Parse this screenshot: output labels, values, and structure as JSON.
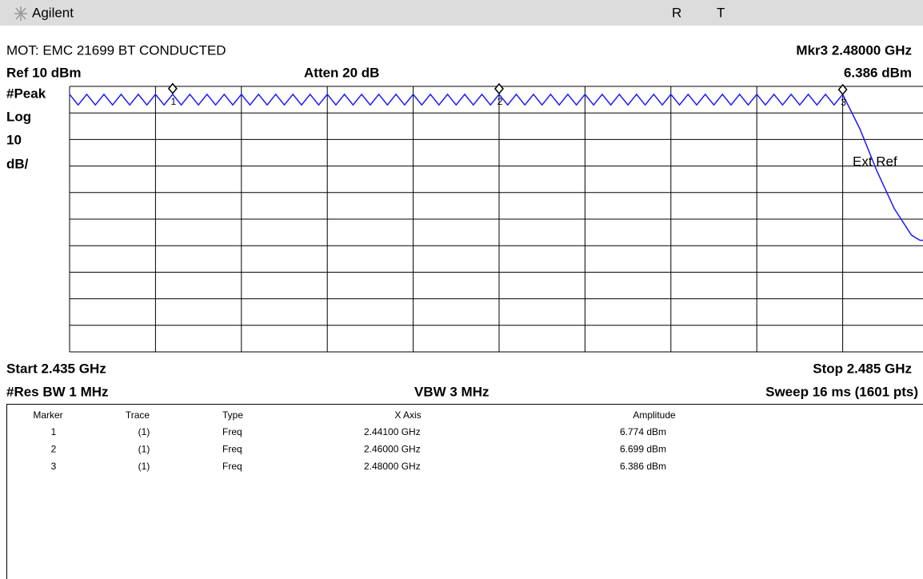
{
  "header": {
    "brand": "Agilent",
    "status": [
      "R",
      "T"
    ]
  },
  "info": {
    "title": "MOT: EMC 21699 BT CONDUCTED",
    "marker_readout": "Mkr3 2.48000 GHz",
    "ref_level": "Ref 10 dBm",
    "attenuation": "Atten 20 dB",
    "marker_amplitude": "6.386 dBm",
    "side_labels": [
      "#Peak",
      "Log",
      "10",
      "dB/"
    ],
    "annotation": "Ext Ref",
    "start": "Start 2.435 GHz",
    "stop": "Stop 2.485 GHz",
    "rbw": "#Res BW 1 MHz",
    "vbw": "VBW 3 MHz",
    "sweep": "Sweep 16 ms (1601 pts)"
  },
  "chart_data": {
    "type": "line",
    "x": [
      2.435,
      2.4355,
      2.436,
      2.4365,
      2.437,
      2.4375,
      2.438,
      2.4385,
      2.439,
      2.4395,
      2.44,
      2.4405,
      2.441,
      2.4415,
      2.442,
      2.4425,
      2.443,
      2.4435,
      2.444,
      2.4445,
      2.445,
      2.4455,
      2.446,
      2.4465,
      2.447,
      2.4475,
      2.448,
      2.4485,
      2.449,
      2.4495,
      2.45,
      2.4505,
      2.451,
      2.4515,
      2.452,
      2.4525,
      2.453,
      2.4535,
      2.454,
      2.4545,
      2.455,
      2.4555,
      2.456,
      2.4565,
      2.457,
      2.4575,
      2.458,
      2.4585,
      2.459,
      2.4595,
      2.46,
      2.4605,
      2.461,
      2.4615,
      2.462,
      2.4625,
      2.463,
      2.4635,
      2.464,
      2.4645,
      2.465,
      2.4655,
      2.466,
      2.4665,
      2.467,
      2.4675,
      2.468,
      2.4685,
      2.469,
      2.4695,
      2.47,
      2.4705,
      2.471,
      2.4715,
      2.472,
      2.4725,
      2.473,
      2.4735,
      2.474,
      2.4745,
      2.475,
      2.4755,
      2.476,
      2.4765,
      2.477,
      2.4775,
      2.478,
      2.4785,
      2.479,
      2.4795,
      2.48,
      2.481,
      2.482,
      2.483,
      2.484,
      2.4845,
      2.485
    ],
    "series": [
      {
        "color": "#1a1aff",
        "values": [
          7,
          3,
          7,
          3,
          7,
          3,
          7,
          3,
          7,
          3,
          7,
          3,
          7,
          3,
          7,
          3,
          7,
          3,
          7,
          3,
          7,
          3,
          7,
          3,
          7,
          3,
          7,
          3,
          7,
          3,
          7,
          3,
          7,
          3,
          7,
          3,
          7,
          3,
          7,
          3,
          7,
          3,
          7,
          3,
          7,
          3,
          7,
          3,
          7,
          3,
          7,
          3,
          7,
          3,
          7,
          3,
          7,
          3,
          7,
          3,
          7,
          3,
          7,
          3,
          7,
          3,
          7,
          3,
          7,
          3,
          7,
          3,
          7,
          3,
          7,
          3,
          7,
          3,
          7,
          3,
          7,
          3,
          7,
          3,
          7,
          3,
          7,
          3,
          7,
          3,
          7,
          -6,
          -22,
          -36,
          -46,
          -48,
          -48
        ]
      }
    ],
    "xlim": [
      2.435,
      2.485
    ],
    "ylim": [
      -90,
      10
    ],
    "markers": [
      {
        "label": "1",
        "x": 2.441,
        "y": 6.774
      },
      {
        "label": "2",
        "x": 2.46,
        "y": 6.699
      },
      {
        "label": "3",
        "x": 2.48,
        "y": 6.386
      }
    ]
  },
  "table": {
    "columns": [
      "Marker",
      "Trace",
      "Type",
      "X Axis",
      "Amplitude"
    ],
    "rows": [
      [
        "1",
        "(1)",
        "Freq",
        "2.44100 GHz",
        "6.774 dBm"
      ],
      [
        "2",
        "(1)",
        "Freq",
        "2.46000 GHz",
        "6.699 dBm"
      ],
      [
        "3",
        "(1)",
        "Freq",
        "2.48000 GHz",
        "6.386 dBm"
      ]
    ]
  }
}
